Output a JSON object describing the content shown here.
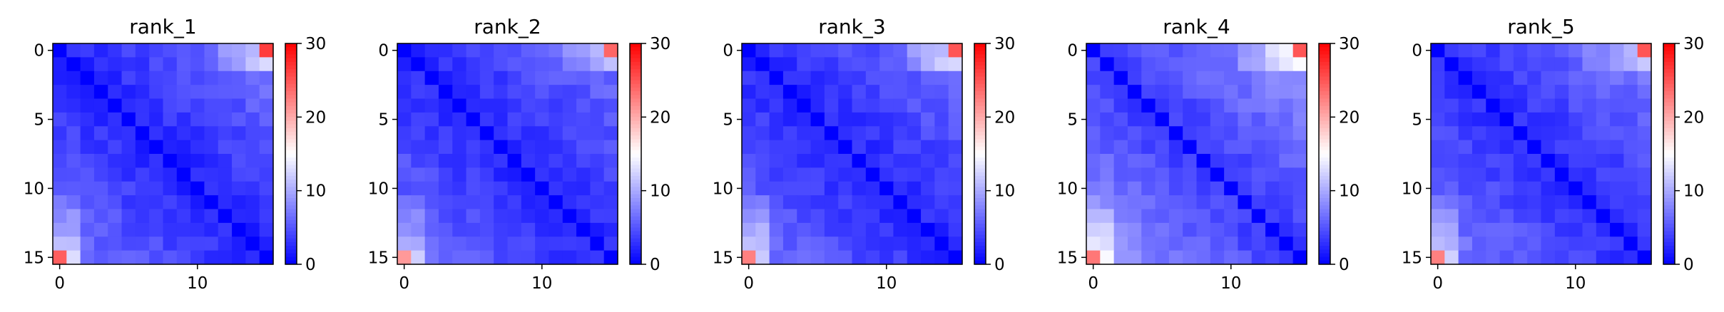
{
  "chart_data": [
    {
      "type": "heatmap",
      "title": "rank_1",
      "size": 16,
      "x_ticks": [
        0,
        10
      ],
      "y_ticks": [
        0,
        5,
        10,
        15
      ],
      "colorbar": {
        "colormap": "bwr",
        "range": [
          0,
          30
        ],
        "ticks": [
          0,
          10,
          20,
          30
        ]
      },
      "diag_value": 0,
      "corner_values": [
        26.5,
        24.5
      ],
      "base": 2.0,
      "slope": 0.33,
      "edge_boost": 6.0
    },
    {
      "type": "heatmap",
      "title": "rank_2",
      "size": 16,
      "x_ticks": [
        0,
        10
      ],
      "y_ticks": [
        0,
        5,
        10,
        15
      ],
      "colorbar": {
        "colormap": "bwr",
        "range": [
          0,
          30
        ],
        "ticks": [
          0,
          10,
          20,
          30
        ]
      },
      "diag_value": 0,
      "corner_values": [
        24.0,
        21.0
      ],
      "base": 2.2,
      "slope": 0.3,
      "edge_boost": 5.0
    },
    {
      "type": "heatmap",
      "title": "rank_3",
      "size": 16,
      "x_ticks": [
        0,
        10
      ],
      "y_ticks": [
        0,
        5,
        10,
        15
      ],
      "colorbar": {
        "colormap": "bwr",
        "range": [
          0,
          30
        ],
        "ticks": [
          0,
          10,
          20,
          30
        ]
      },
      "diag_value": 0,
      "corner_values": [
        25.0,
        22.5
      ],
      "base": 2.2,
      "slope": 0.3,
      "edge_boost": 6.5
    },
    {
      "type": "heatmap",
      "title": "rank_4",
      "size": 16,
      "x_ticks": [
        0,
        10
      ],
      "y_ticks": [
        0,
        5,
        10,
        15
      ],
      "colorbar": {
        "colormap": "bwr",
        "range": [
          0,
          30
        ],
        "ticks": [
          0,
          10,
          20,
          30
        ]
      },
      "diag_value": 0,
      "corner_values": [
        25.0,
        23.0
      ],
      "base": 3.2,
      "slope": 0.4,
      "edge_boost": 6.5
    },
    {
      "type": "heatmap",
      "title": "rank_5",
      "size": 16,
      "x_ticks": [
        0,
        10
      ],
      "y_ticks": [
        0,
        5,
        10,
        15
      ],
      "colorbar": {
        "colormap": "bwr",
        "range": [
          0,
          30
        ],
        "ticks": [
          0,
          10,
          20,
          30
        ]
      },
      "diag_value": 0,
      "corner_values": [
        25.0,
        22.5
      ],
      "base": 2.4,
      "slope": 0.33,
      "edge_boost": 5.5
    }
  ]
}
